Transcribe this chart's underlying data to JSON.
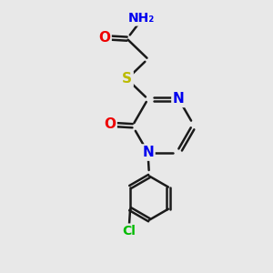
{
  "background_color": "#e8e8e8",
  "bond_color": "#1a1a1a",
  "atom_colors": {
    "N": "#0000ee",
    "O": "#ee0000",
    "S": "#bbbb00",
    "Cl": "#00bb00",
    "C": "#1a1a1a"
  },
  "bond_width": 1.8,
  "font_size": 10,
  "figsize": [
    3.0,
    3.0
  ],
  "dpi": 100
}
